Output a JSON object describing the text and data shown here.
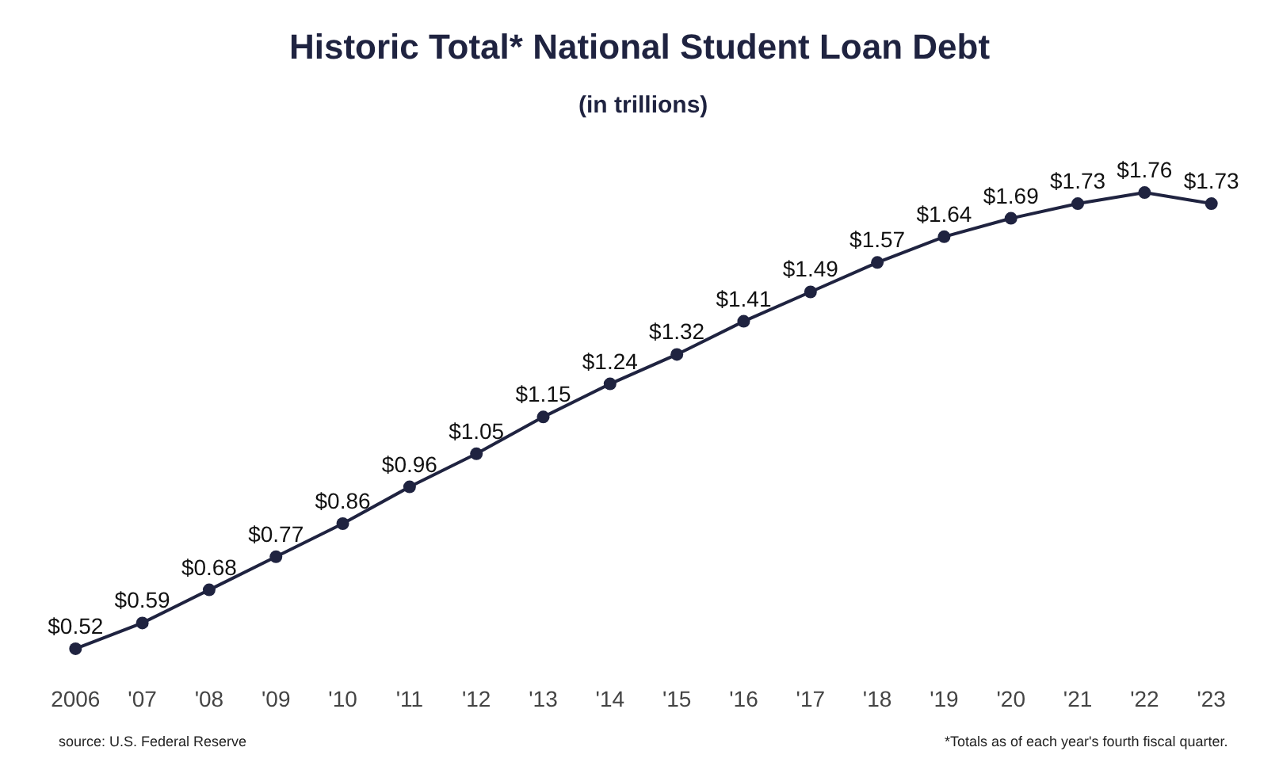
{
  "chart_data": {
    "type": "line",
    "title": "Historic Total* National Student Loan Debt",
    "subtitle": "(in trillions)",
    "categories": [
      "2006",
      "'07",
      "'08",
      "'09",
      "'10",
      "'11",
      "'12",
      "'13",
      "'14",
      "'15",
      "'16",
      "'17",
      "'18",
      "'19",
      "'20",
      "'21",
      "'22",
      "'23"
    ],
    "series": [
      {
        "color": "#1f2340",
        "values": [
          0.52,
          0.59,
          0.68,
          0.77,
          0.86,
          0.96,
          1.05,
          1.15,
          1.24,
          1.32,
          1.41,
          1.49,
          1.57,
          1.64,
          1.69,
          1.73,
          1.76,
          1.73
        ],
        "value_labels": [
          "$0.52",
          "$0.59",
          "$0.68",
          "$0.77",
          "$0.86",
          "$0.96",
          "$1.05",
          "$1.15",
          "$1.24",
          "$1.32",
          "$1.41",
          "$1.49",
          "$1.57",
          "$1.64",
          "$1.69",
          "$1.73",
          "$1.76",
          "$1.73"
        ]
      }
    ],
    "marker": "circle",
    "line_style": "solid",
    "grid": false,
    "legend": false,
    "tick_labels": "x",
    "annotations": [
      "source: U.S. Federal Reserve",
      "*Totals as of each year's fourth fiscal quarter."
    ]
  }
}
